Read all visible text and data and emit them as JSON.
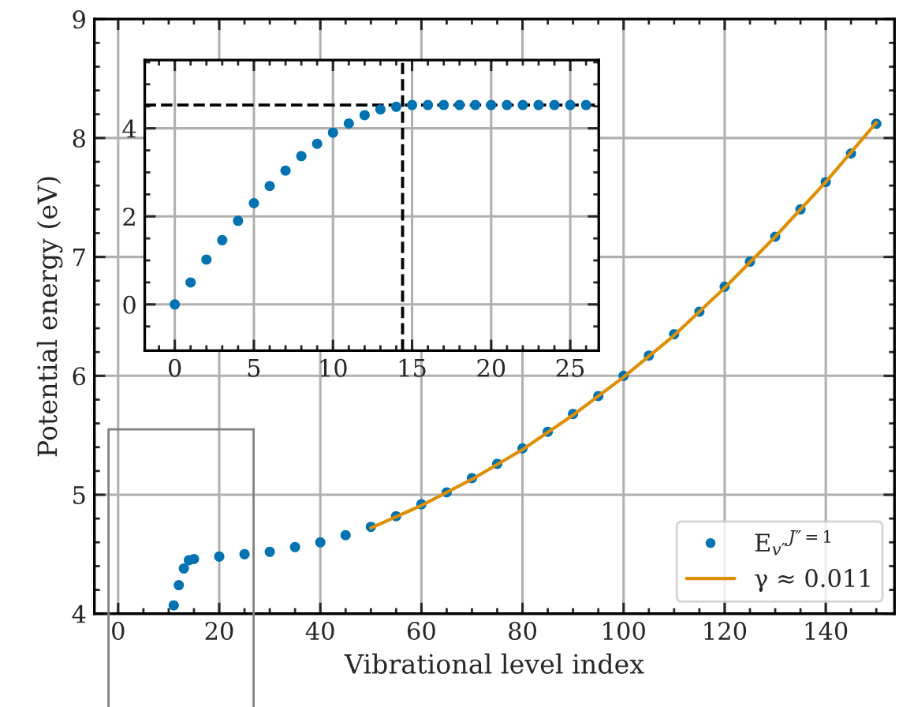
{
  "chart_data": [
    {
      "type": "scatter",
      "xlabel": "Vibrational level index",
      "ylabel": "Potential energy (eV)",
      "xlim": [
        -4.7,
        153.6
      ],
      "ylim": [
        4,
        9
      ],
      "xticks": [
        0,
        20,
        40,
        60,
        80,
        100,
        120,
        140,
        {
          "value": 5,
          "label": null
        },
        {
          "value": 10,
          "label": null
        },
        {
          "value": 15,
          "label": null
        },
        {
          "value": 25,
          "label": null
        },
        {
          "value": 30,
          "label": null
        },
        {
          "value": 35,
          "label": null
        },
        {
          "value": 45,
          "label": null
        },
        {
          "value": 50,
          "label": null
        },
        {
          "value": 55,
          "label": null
        },
        {
          "value": 65,
          "label": null
        },
        {
          "value": 70,
          "label": null
        },
        {
          "value": 75,
          "label": null
        },
        {
          "value": 85,
          "label": null
        },
        {
          "value": 90,
          "label": null
        },
        {
          "value": 95,
          "label": null
        },
        {
          "value": 105,
          "label": null
        },
        {
          "value": 110,
          "label": null
        },
        {
          "value": 115,
          "label": null
        },
        {
          "value": 125,
          "label": null
        },
        {
          "value": 130,
          "label": null
        },
        {
          "value": 135,
          "label": null
        },
        {
          "value": 145,
          "label": null
        },
        {
          "value": 150,
          "label": null
        }
      ],
      "yticks": [
        4,
        5,
        6,
        7,
        8,
        9,
        {
          "value": 4.2,
          "label": null
        },
        {
          "value": 4.4,
          "label": null
        },
        {
          "value": 4.6,
          "label": null
        },
        {
          "value": 4.8,
          "label": null
        },
        {
          "value": 5.2,
          "label": null
        },
        {
          "value": 5.4,
          "label": null
        },
        {
          "value": 5.6,
          "label": null
        },
        {
          "value": 5.8,
          "label": null
        },
        {
          "value": 6.2,
          "label": null
        },
        {
          "value": 6.4,
          "label": null
        },
        {
          "value": 6.6,
          "label": null
        },
        {
          "value": 6.8,
          "label": null
        },
        {
          "value": 7.2,
          "label": null
        },
        {
          "value": 7.4,
          "label": null
        },
        {
          "value": 7.6,
          "label": null
        },
        {
          "value": 7.8,
          "label": null
        },
        {
          "value": 8.2,
          "label": null
        },
        {
          "value": 8.4,
          "label": null
        },
        {
          "value": 8.6,
          "label": null
        },
        {
          "value": 8.8,
          "label": null
        }
      ],
      "grid": true,
      "legend": "bottom right",
      "series": [
        {
          "name": "E$_{v″}$$^{J″=1}$",
          "marker": "circle",
          "color": "#0173b2",
          "x": [
            11,
            12,
            13,
            14,
            15,
            20,
            25,
            30,
            35,
            40,
            45,
            50,
            55,
            60,
            65,
            70,
            75,
            80,
            85,
            90,
            95,
            100,
            105,
            110,
            115,
            120,
            125,
            130,
            135,
            140,
            145,
            150
          ],
          "values": [
            4.07,
            4.24,
            4.38,
            4.45,
            4.46,
            4.48,
            4.5,
            4.52,
            4.56,
            4.6,
            4.66,
            4.73,
            4.82,
            4.92,
            5.02,
            5.14,
            5.26,
            5.39,
            5.53,
            5.68,
            5.83,
            6.0,
            6.17,
            6.35,
            6.54,
            6.75,
            6.96,
            7.17,
            7.4,
            7.63,
            7.87,
            8.12
          ]
        },
        {
          "name": "γ ≈ 0.011",
          "type": "line",
          "color": "#de8f05",
          "x": [
            50,
            60,
            70,
            80,
            90,
            100,
            110,
            120,
            130,
            140,
            150
          ],
          "values": [
            4.72,
            4.91,
            5.13,
            5.38,
            5.67,
            5.99,
            6.34,
            6.74,
            7.17,
            7.63,
            8.13
          ]
        }
      ]
    },
    {
      "type": "scatter",
      "xlim": [
        -1.9,
        26.8
      ],
      "ylim": [
        -1.05,
        5.55
      ],
      "xticks": [
        0,
        5,
        10,
        15,
        20,
        25,
        {
          "value": -1,
          "label": null
        },
        {
          "value": 1,
          "label": null
        },
        {
          "value": 2,
          "label": null
        },
        {
          "value": 3,
          "label": null
        },
        {
          "value": 4,
          "label": null
        },
        {
          "value": 6,
          "label": null
        },
        {
          "value": 7,
          "label": null
        },
        {
          "value": 8,
          "label": null
        },
        {
          "value": 9,
          "label": null
        },
        {
          "value": 11,
          "label": null
        },
        {
          "value": 12,
          "label": null
        },
        {
          "value": 13,
          "label": null
        },
        {
          "value": 14,
          "label": null
        },
        {
          "value": 16,
          "label": null
        },
        {
          "value": 17,
          "label": null
        },
        {
          "value": 18,
          "label": null
        },
        {
          "value": 19,
          "label": null
        },
        {
          "value": 21,
          "label": null
        },
        {
          "value": 22,
          "label": null
        },
        {
          "value": 23,
          "label": null
        },
        {
          "value": 24,
          "label": null
        },
        {
          "value": 26,
          "label": null
        }
      ],
      "yticks": [
        0,
        2,
        4,
        {
          "value": -0.5,
          "label": null
        },
        {
          "value": 0.5,
          "label": null
        },
        {
          "value": 1,
          "label": null
        },
        {
          "value": 1.5,
          "label": null
        },
        {
          "value": 2.5,
          "label": null
        },
        {
          "value": 3,
          "label": null
        },
        {
          "value": 3.5,
          "label": null
        },
        {
          "value": 4.5,
          "label": null
        },
        {
          "value": 5,
          "label": null
        },
        {
          "value": 5.5,
          "label": null
        }
      ],
      "grid": true,
      "ref_lines": [
        {
          "axis": "y",
          "value": 4.53,
          "color": "#000000",
          "line_style": "dashed"
        },
        {
          "axis": "x",
          "value": 14.4,
          "color": "#000000",
          "line_style": "dashed"
        }
      ],
      "series": [
        {
          "marker": "circle",
          "color": "#0173b2",
          "x": [
            0,
            1,
            2,
            3,
            4,
            5,
            6,
            7,
            8,
            9,
            10,
            11,
            12,
            13,
            14,
            15,
            16,
            17,
            18,
            19,
            20,
            21,
            22,
            23,
            24,
            25,
            26
          ],
          "values": [
            0,
            0.5,
            1.02,
            1.46,
            1.9,
            2.3,
            2.69,
            3.04,
            3.37,
            3.65,
            3.9,
            4.11,
            4.3,
            4.43,
            4.49,
            4.53,
            4.53,
            4.53,
            4.53,
            4.53,
            4.53,
            4.53,
            4.53,
            4.53,
            4.53,
            4.53,
            4.53
          ]
        }
      ]
    }
  ]
}
